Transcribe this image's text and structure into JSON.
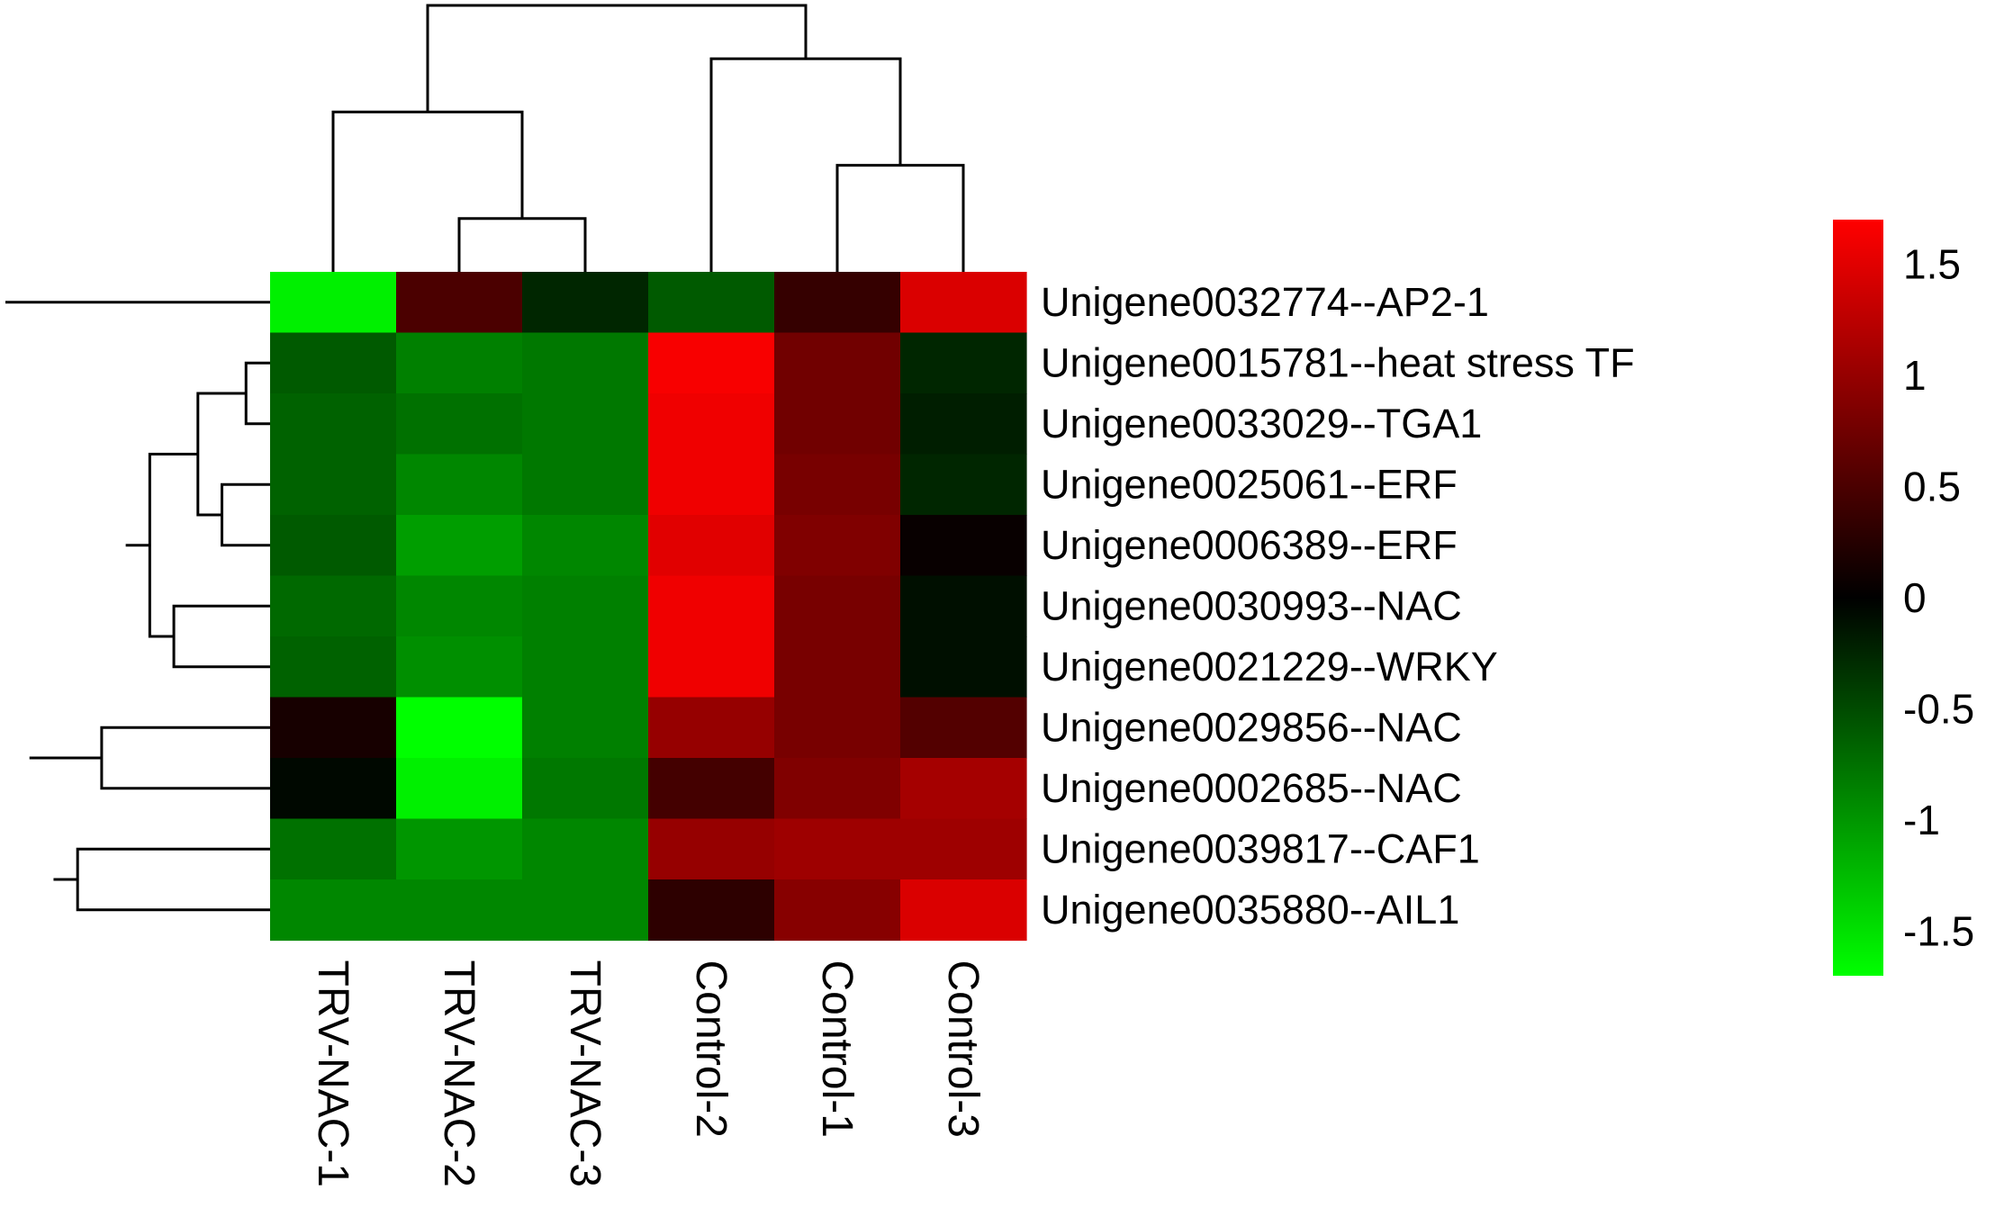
{
  "chart_data": {
    "type": "heatmap",
    "columns": [
      "TRV-NAC-1",
      "TRV-NAC-2",
      "TRV-NAC-3",
      "Control-2",
      "Control-1",
      "Control-3"
    ],
    "rows": [
      "Unigene0032774--AP2-1",
      "Unigene0015781--heat stress TF",
      "Unigene0033029--TGA1",
      "Unigene0025061--ERF",
      "Unigene0006389--ERF",
      "Unigene0030993--NAC",
      "Unigene0021229--WRKY",
      "Unigene0029856--NAC",
      "Unigene0002685--NAC",
      "Unigene0039817--CAF1",
      "Unigene0035880--AIL1"
    ],
    "values": [
      [
        -1.6,
        0.5,
        -0.25,
        -0.6,
        0.35,
        1.45
      ],
      [
        -0.6,
        -0.85,
        -0.8,
        1.65,
        0.75,
        -0.25
      ],
      [
        -0.65,
        -0.75,
        -0.8,
        1.6,
        0.75,
        -0.2
      ],
      [
        -0.65,
        -0.9,
        -0.8,
        1.6,
        0.8,
        -0.25
      ],
      [
        -0.6,
        -1.05,
        -0.9,
        1.5,
        0.85,
        0.05
      ],
      [
        -0.7,
        -0.9,
        -0.85,
        1.6,
        0.8,
        -0.1
      ],
      [
        -0.65,
        -0.95,
        -0.85,
        1.6,
        0.8,
        -0.1
      ],
      [
        0.15,
        -1.7,
        -0.85,
        1.0,
        0.8,
        0.55
      ],
      [
        -0.05,
        -1.6,
        -0.8,
        0.45,
        0.85,
        1.1
      ],
      [
        -0.75,
        -1.0,
        -0.9,
        1.0,
        1.05,
        1.05
      ],
      [
        -0.9,
        -0.9,
        -0.9,
        0.3,
        0.9,
        1.45
      ]
    ],
    "colorbar": {
      "min": -1.7,
      "max": 1.7,
      "ticks": [
        "1.5",
        "1",
        "0.5",
        "0",
        "-0.5",
        "-1",
        "-1.5"
      ],
      "tick_values": [
        1.5,
        1,
        0.5,
        0,
        -0.5,
        -1,
        -1.5
      ],
      "low_color": "#00ff00",
      "mid_color": "#000000",
      "high_color": "#ff0000"
    },
    "column_dendrogram": [
      [
        1,
        2
      ],
      [
        4,
        5
      ],
      [
        0,
        6
      ],
      [
        3,
        7
      ],
      [
        8,
        9
      ]
    ],
    "row_dendrogram": [
      [
        1,
        2
      ],
      [
        3,
        4
      ],
      [
        11,
        12
      ],
      [
        5,
        6
      ],
      [
        13,
        14
      ],
      [
        15,
        16
      ],
      [
        7,
        8
      ],
      [
        9,
        10
      ],
      [
        18,
        19
      ],
      [
        17,
        20
      ],
      [
        0,
        21
      ]
    ]
  }
}
